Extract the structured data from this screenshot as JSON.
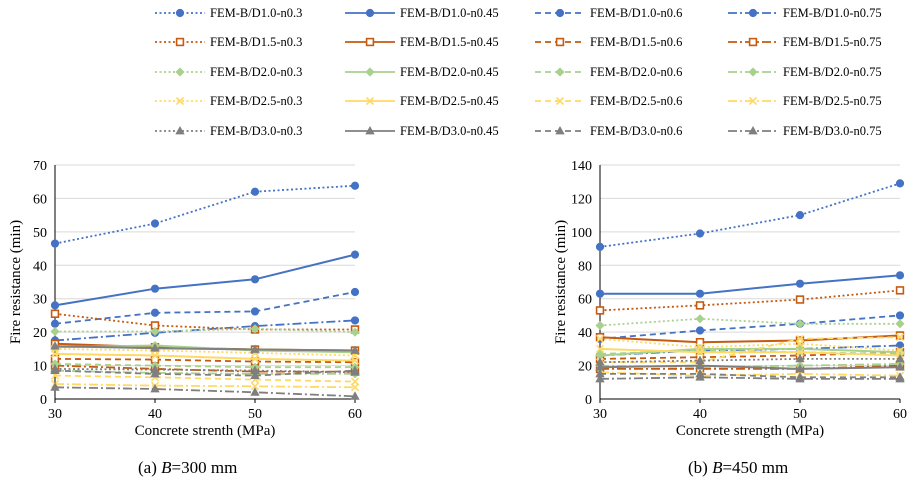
{
  "legend": {
    "entries": [
      "FEM-B/D1.0-n0.3",
      "FEM-B/D1.0-n0.45",
      "FEM-B/D1.0-n0.6",
      "FEM-B/D1.0-n0.75",
      "FEM-B/D1.5-n0.3",
      "FEM-B/D1.5-n0.45",
      "FEM-B/D1.5-n0.6",
      "FEM-B/D1.5-n0.75",
      "FEM-B/D2.0-n0.3",
      "FEM-B/D2.0-n0.45",
      "FEM-B/D2.0-n0.6",
      "FEM-B/D2.0-n0.75",
      "FEM-B/D2.5-n0.3",
      "FEM-B/D2.5-n0.45",
      "FEM-B/D2.5-n0.6",
      "FEM-B/D2.5-n0.75",
      "FEM-B/D3.0-n0.3",
      "FEM-B/D3.0-n0.45",
      "FEM-B/D3.0-n0.6",
      "FEM-B/D3.0-n0.75"
    ]
  },
  "style": {
    "group_colors": [
      "#4472c4",
      "#c55a11",
      "#a9d18e",
      "#ffd966",
      "#7f7f7f"
    ],
    "group_markers": [
      "circle",
      "square-open",
      "diamond",
      "cross",
      "triangle"
    ],
    "dash_styles": [
      "dotted",
      "solid",
      "dashed",
      "long-dash-dot"
    ]
  },
  "captions": {
    "a_prefix": "(a) ",
    "a_var": "B",
    "a_rest": "=300 mm",
    "b_prefix": "(b) ",
    "b_var": "B",
    "b_rest": "=450 mm"
  },
  "chart_data": [
    {
      "type": "line",
      "xlabel": "Concrete strenth (MPa)",
      "ylabel": "Fire resistance (min)",
      "x": [
        30,
        40,
        50,
        60
      ],
      "xlim": [
        30,
        60
      ],
      "ylim": [
        0,
        70
      ],
      "yticks": [
        0,
        10,
        20,
        30,
        40,
        50,
        60,
        70
      ],
      "xticks": [
        30,
        40,
        50,
        60
      ],
      "grid": "horizontal",
      "series": [
        {
          "name": "FEM-B/D1.0-n0.3",
          "values": [
            46.5,
            52.5,
            62.0,
            63.8
          ]
        },
        {
          "name": "FEM-B/D1.0-n0.45",
          "values": [
            28.0,
            33.0,
            35.8,
            43.2
          ]
        },
        {
          "name": "FEM-B/D1.0-n0.6",
          "values": [
            22.5,
            25.8,
            26.2,
            32.0
          ]
        },
        {
          "name": "FEM-B/D1.0-n0.75",
          "values": [
            17.5,
            19.8,
            21.8,
            23.5
          ]
        },
        {
          "name": "FEM-B/D1.5-n0.3",
          "values": [
            25.5,
            22.0,
            20.8,
            20.8
          ]
        },
        {
          "name": "FEM-B/D1.5-n0.45",
          "values": [
            16.5,
            15.5,
            14.8,
            14.5
          ]
        },
        {
          "name": "FEM-B/D1.5-n0.6",
          "values": [
            12.0,
            11.8,
            11.2,
            11.0
          ]
        },
        {
          "name": "FEM-B/D1.5-n0.75",
          "values": [
            10.0,
            9.0,
            8.2,
            8.2
          ]
        },
        {
          "name": "FEM-B/D2.0-n0.3",
          "values": [
            20.2,
            20.2,
            21.0,
            20.0
          ]
        },
        {
          "name": "FEM-B/D2.0-n0.45",
          "values": [
            15.5,
            16.0,
            14.5,
            14.0
          ]
        },
        {
          "name": "FEM-B/D2.0-n0.6",
          "values": [
            10.5,
            10.0,
            9.5,
            9.5
          ]
        },
        {
          "name": "FEM-B/D2.0-n0.75",
          "values": [
            8.5,
            7.8,
            7.5,
            7.5
          ]
        },
        {
          "name": "FEM-B/D2.5-n0.3",
          "values": [
            15.0,
            14.5,
            13.8,
            13.0
          ]
        },
        {
          "name": "FEM-B/D2.5-n0.45",
          "values": [
            13.5,
            13.0,
            12.0,
            11.5
          ]
        },
        {
          "name": "FEM-B/D2.5-n0.6",
          "values": [
            7.0,
            6.5,
            5.8,
            5.2
          ]
        },
        {
          "name": "FEM-B/D2.5-n0.75",
          "values": [
            4.5,
            4.0,
            3.8,
            3.5
          ]
        },
        {
          "name": "FEM-B/D3.0-n0.3",
          "values": [
            9.0,
            8.8,
            8.5,
            8.0
          ]
        },
        {
          "name": "FEM-B/D3.0-n0.45",
          "values": [
            15.8,
            15.2,
            14.8,
            14.5
          ]
        },
        {
          "name": "FEM-B/D3.0-n0.6",
          "values": [
            8.5,
            7.5,
            7.0,
            8.5
          ]
        },
        {
          "name": "FEM-B/D3.0-n0.75",
          "values": [
            3.5,
            3.0,
            2.0,
            0.8
          ]
        }
      ]
    },
    {
      "type": "line",
      "xlabel": "Concrete strength (MPa)",
      "ylabel": "Fire resistance (min)",
      "x": [
        30,
        40,
        50,
        60
      ],
      "xlim": [
        30,
        60
      ],
      "ylim": [
        0,
        140
      ],
      "yticks": [
        0,
        20,
        40,
        60,
        80,
        100,
        120,
        140
      ],
      "xticks": [
        30,
        40,
        50,
        60
      ],
      "grid": "horizontal",
      "series": [
        {
          "name": "FEM-B/D1.0-n0.3",
          "values": [
            91,
            99,
            110,
            129
          ]
        },
        {
          "name": "FEM-B/D1.0-n0.45",
          "values": [
            63,
            63,
            69,
            74
          ]
        },
        {
          "name": "FEM-B/D1.0-n0.6",
          "values": [
            36,
            41,
            45,
            50
          ]
        },
        {
          "name": "FEM-B/D1.0-n0.75",
          "values": [
            26,
            29,
            30,
            32
          ]
        },
        {
          "name": "FEM-B/D1.5-n0.3",
          "values": [
            53,
            56,
            59.5,
            65
          ]
        },
        {
          "name": "FEM-B/D1.5-n0.45",
          "values": [
            37,
            34,
            35,
            38
          ]
        },
        {
          "name": "FEM-B/D1.5-n0.6",
          "values": [
            24,
            25,
            26,
            28
          ]
        },
        {
          "name": "FEM-B/D1.5-n0.75",
          "values": [
            18,
            18,
            18,
            20
          ]
        },
        {
          "name": "FEM-B/D2.0-n0.3",
          "values": [
            44,
            48,
            45,
            45
          ]
        },
        {
          "name": "FEM-B/D2.0-n0.45",
          "values": [
            26,
            30,
            30,
            28
          ]
        },
        {
          "name": "FEM-B/D2.0-n0.6",
          "values": [
            27,
            29,
            28,
            27
          ]
        },
        {
          "name": "FEM-B/D2.0-n0.75",
          "values": [
            20,
            19,
            20,
            21
          ]
        },
        {
          "name": "FEM-B/D2.5-n0.3",
          "values": [
            36,
            31,
            33,
            29
          ]
        },
        {
          "name": "FEM-B/D2.5-n0.45",
          "values": [
            30,
            28,
            28,
            26
          ]
        },
        {
          "name": "FEM-B/D2.5-n0.6",
          "values": [
            22,
            22,
            36,
            37
          ]
        },
        {
          "name": "FEM-B/D2.5-n0.75",
          "values": [
            16,
            14,
            15,
            14
          ]
        },
        {
          "name": "FEM-B/D3.0-n0.3",
          "values": [
            22,
            23,
            24,
            24
          ]
        },
        {
          "name": "FEM-B/D3.0-n0.45",
          "values": [
            19,
            20,
            18,
            19
          ]
        },
        {
          "name": "FEM-B/D3.0-n0.6",
          "values": [
            15,
            15,
            13,
            13
          ]
        },
        {
          "name": "FEM-B/D3.0-n0.75",
          "values": [
            12,
            13,
            12,
            12
          ]
        }
      ]
    }
  ]
}
